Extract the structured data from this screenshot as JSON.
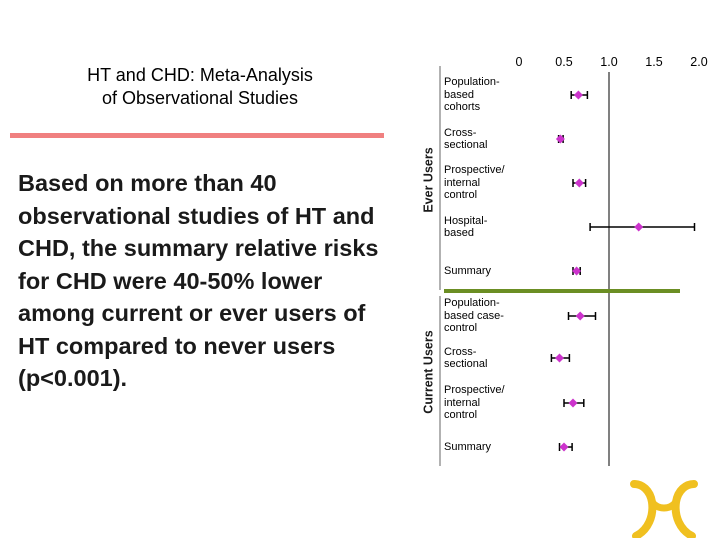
{
  "slide": {
    "title_line1": "HT and CHD: Meta-Analysis",
    "title_line2": "of Observational Studies",
    "body": "Based on more than 40 observational studies of HT and CHD, the summary relative risks for CHD were 40-50% lower among current or ever users of HT compared to never users (p<0.001)."
  },
  "colors": {
    "accent_divider": "#f08080",
    "group_separator": "#6b8e23",
    "reference_line": "#808080",
    "marker": "#cc33cc",
    "logo": "#f0c020"
  },
  "chart_data": {
    "type": "forest",
    "x_tick_labels": [
      "0",
      "0.5",
      "1.0",
      "1.5",
      "2.0"
    ],
    "x_ticks": [
      0,
      0.5,
      1.0,
      1.5,
      2.0
    ],
    "reference_value": 1.0,
    "groups": [
      {
        "name": "Ever Users",
        "rows": [
          {
            "label": "Population-\nbased\ncohorts",
            "rr": 0.66,
            "lo": 0.58,
            "hi": 0.76
          },
          {
            "label": "Cross-\nsectional",
            "rr": 0.46,
            "lo": 0.44,
            "hi": 0.49
          },
          {
            "label": "Prospective/\ninternal\ncontrol",
            "rr": 0.67,
            "lo": 0.6,
            "hi": 0.74
          },
          {
            "label": "Hospital-\nbased",
            "rr": 1.33,
            "lo": 0.79,
            "hi": 1.95
          },
          {
            "label": "Summary",
            "rr": 0.64,
            "lo": 0.6,
            "hi": 0.68
          }
        ]
      },
      {
        "name": "Current Users",
        "rows": [
          {
            "label": "Population-\nbased case-\ncontrol",
            "rr": 0.68,
            "lo": 0.55,
            "hi": 0.85
          },
          {
            "label": "Cross-\nsectional",
            "rr": 0.45,
            "lo": 0.36,
            "hi": 0.56
          },
          {
            "label": "Prospective/\ninternal\ncontrol",
            "rr": 0.6,
            "lo": 0.5,
            "hi": 0.72
          },
          {
            "label": "Summary",
            "rr": 0.5,
            "lo": 0.45,
            "hi": 0.59
          }
        ]
      }
    ]
  }
}
